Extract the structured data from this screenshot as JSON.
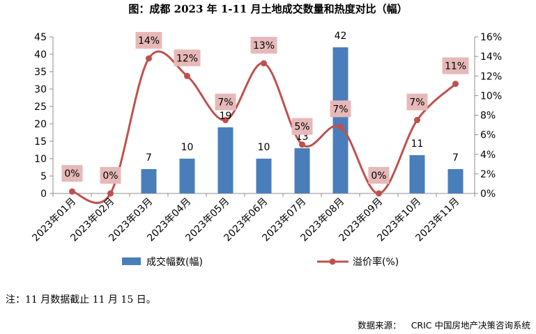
{
  "chart_data": {
    "type": "bar",
    "title": "图：成都 2023 年 1-11 月土地成交数量和热度对比（幅）",
    "categories": [
      "2023年01月",
      "2023年02月",
      "2023年03月",
      "2023年04月",
      "2023年05月",
      "2023年06月",
      "2023年07月",
      "2023年08月",
      "2023年09月",
      "2023年10月",
      "2023年11月"
    ],
    "series": [
      {
        "name": "成交幅数(幅)",
        "type": "bar",
        "axis": "left",
        "color": "#4a7ebb",
        "values": [
          0,
          0,
          7,
          10,
          19,
          10,
          13,
          42,
          0,
          11,
          7
        ],
        "labels": [
          "",
          "",
          "7",
          "10",
          "19",
          "10",
          "13",
          "42",
          "",
          "11",
          "7"
        ]
      },
      {
        "name": "溢价率(%)",
        "type": "line",
        "axis": "right",
        "color": "#c0504d",
        "values": [
          0,
          0,
          14,
          12,
          7,
          13,
          5,
          7,
          0,
          7,
          11
        ],
        "labels": [
          "0%",
          "0%",
          "14%",
          "12%",
          "7%",
          "13%",
          "5%",
          "7%",
          "0%",
          "7%",
          "11%"
        ],
        "plot_values": [
          0.2,
          0,
          13.8,
          12.0,
          7.5,
          13.3,
          5.0,
          6.8,
          0,
          7.5,
          11.2
        ]
      }
    ],
    "y_left": {
      "min": 0,
      "max": 45,
      "ticks": [
        "0",
        "5",
        "10",
        "15",
        "20",
        "25",
        "30",
        "35",
        "40",
        "45"
      ]
    },
    "y_right": {
      "min": 0,
      "max": 16,
      "ticks": [
        "0%",
        "2%",
        "4%",
        "6%",
        "8%",
        "10%",
        "12%",
        "14%",
        "16%"
      ]
    },
    "legend": "bottom",
    "grid": false
  },
  "note": "注：11 月数据截止 11 月 15 日。",
  "source": {
    "label": "数据来源：",
    "value": "CRIC 中国房地产决策咨询系统"
  }
}
